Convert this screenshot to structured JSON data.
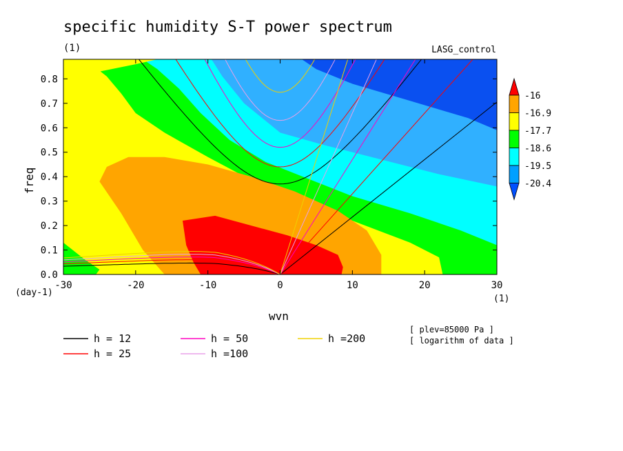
{
  "chart_data": {
    "type": "heatmap",
    "title": "specific humidity S-T power spectrum",
    "subtitle_left": "(1)",
    "subtitle_right": "LASG_control",
    "xlabel": "wvn",
    "ylabel": "freq",
    "x_unit": "(1)",
    "y_unit": "(day-1)",
    "xlim": [
      -30,
      30
    ],
    "ylim": [
      0,
      0.88
    ],
    "xticks": [
      -30,
      -20,
      -10,
      0,
      10,
      20,
      30
    ],
    "yticks": [
      0.0,
      0.1,
      0.2,
      0.3,
      0.4,
      0.5,
      0.6,
      0.7,
      0.8
    ],
    "colorbar": {
      "levels": [
        "-16",
        "-16.9",
        "-17.7",
        "-18.6",
        "-19.5",
        "-20.4"
      ],
      "colors": [
        "#ff0000",
        "#ffa500",
        "#ffff00",
        "#00ff00",
        "#00ffff",
        "#00a0ff",
        "#0050ff"
      ]
    },
    "contour_fill": {
      "base_color": "#ffff00",
      "regions": [
        {
          "level": "red",
          "color": "#ff0000"
        },
        {
          "level": "orange",
          "color": "#ffa500"
        },
        {
          "level": "yellow",
          "color": "#ffff00"
        },
        {
          "level": "green",
          "color": "#00ff00"
        },
        {
          "level": "cyan",
          "color": "#00ffff"
        },
        {
          "level": "lightblue",
          "color": "#30b0ff"
        },
        {
          "level": "blue",
          "color": "#0a50f0"
        }
      ]
    },
    "series": [
      {
        "name": "h = 12",
        "color": "#000000"
      },
      {
        "name": "h = 25",
        "color": "#ff0000"
      },
      {
        "name": "h = 50",
        "color": "#ff00c0"
      },
      {
        "name": "h =100",
        "color": "#e8a0e8"
      },
      {
        "name": "h =200",
        "color": "#f0d000"
      }
    ],
    "notes": [
      "[ plev=85000 Pa ]",
      "[ logarithm of data ]"
    ]
  }
}
